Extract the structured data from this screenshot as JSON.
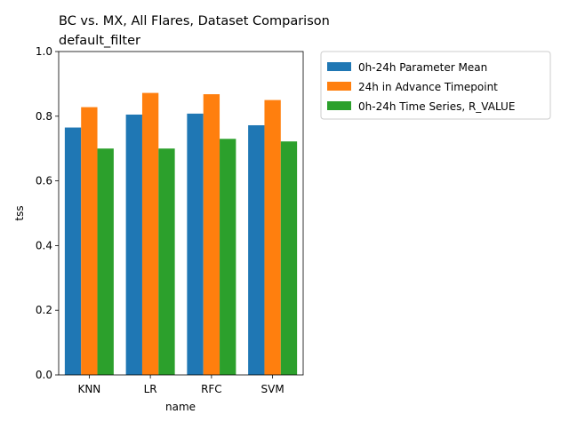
{
  "chart_data": {
    "type": "bar",
    "title": "BC vs. MX, All Flares, Dataset Comparison",
    "subtitle": "default_filter",
    "xlabel": "name",
    "ylabel": "tss",
    "categories": [
      "KNN",
      "LR",
      "RFC",
      "SVM"
    ],
    "ylim": [
      0,
      1.0
    ],
    "yticks": [
      "0.0",
      "0.2",
      "0.4",
      "0.6",
      "0.8",
      "1.0"
    ],
    "grid": false,
    "legend_position": "outside-top-right",
    "series": [
      {
        "name": "0h-24h Parameter Mean",
        "color": "#1f77b4",
        "values": [
          0.765,
          0.805,
          0.808,
          0.772
        ]
      },
      {
        "name": "24h in Advance Timepoint",
        "color": "#ff7f0e",
        "values": [
          0.828,
          0.872,
          0.868,
          0.85
        ]
      },
      {
        "name": "0h-24h Time Series, R_VALUE",
        "color": "#2ca02c",
        "values": [
          0.7,
          0.7,
          0.73,
          0.722
        ]
      }
    ]
  }
}
